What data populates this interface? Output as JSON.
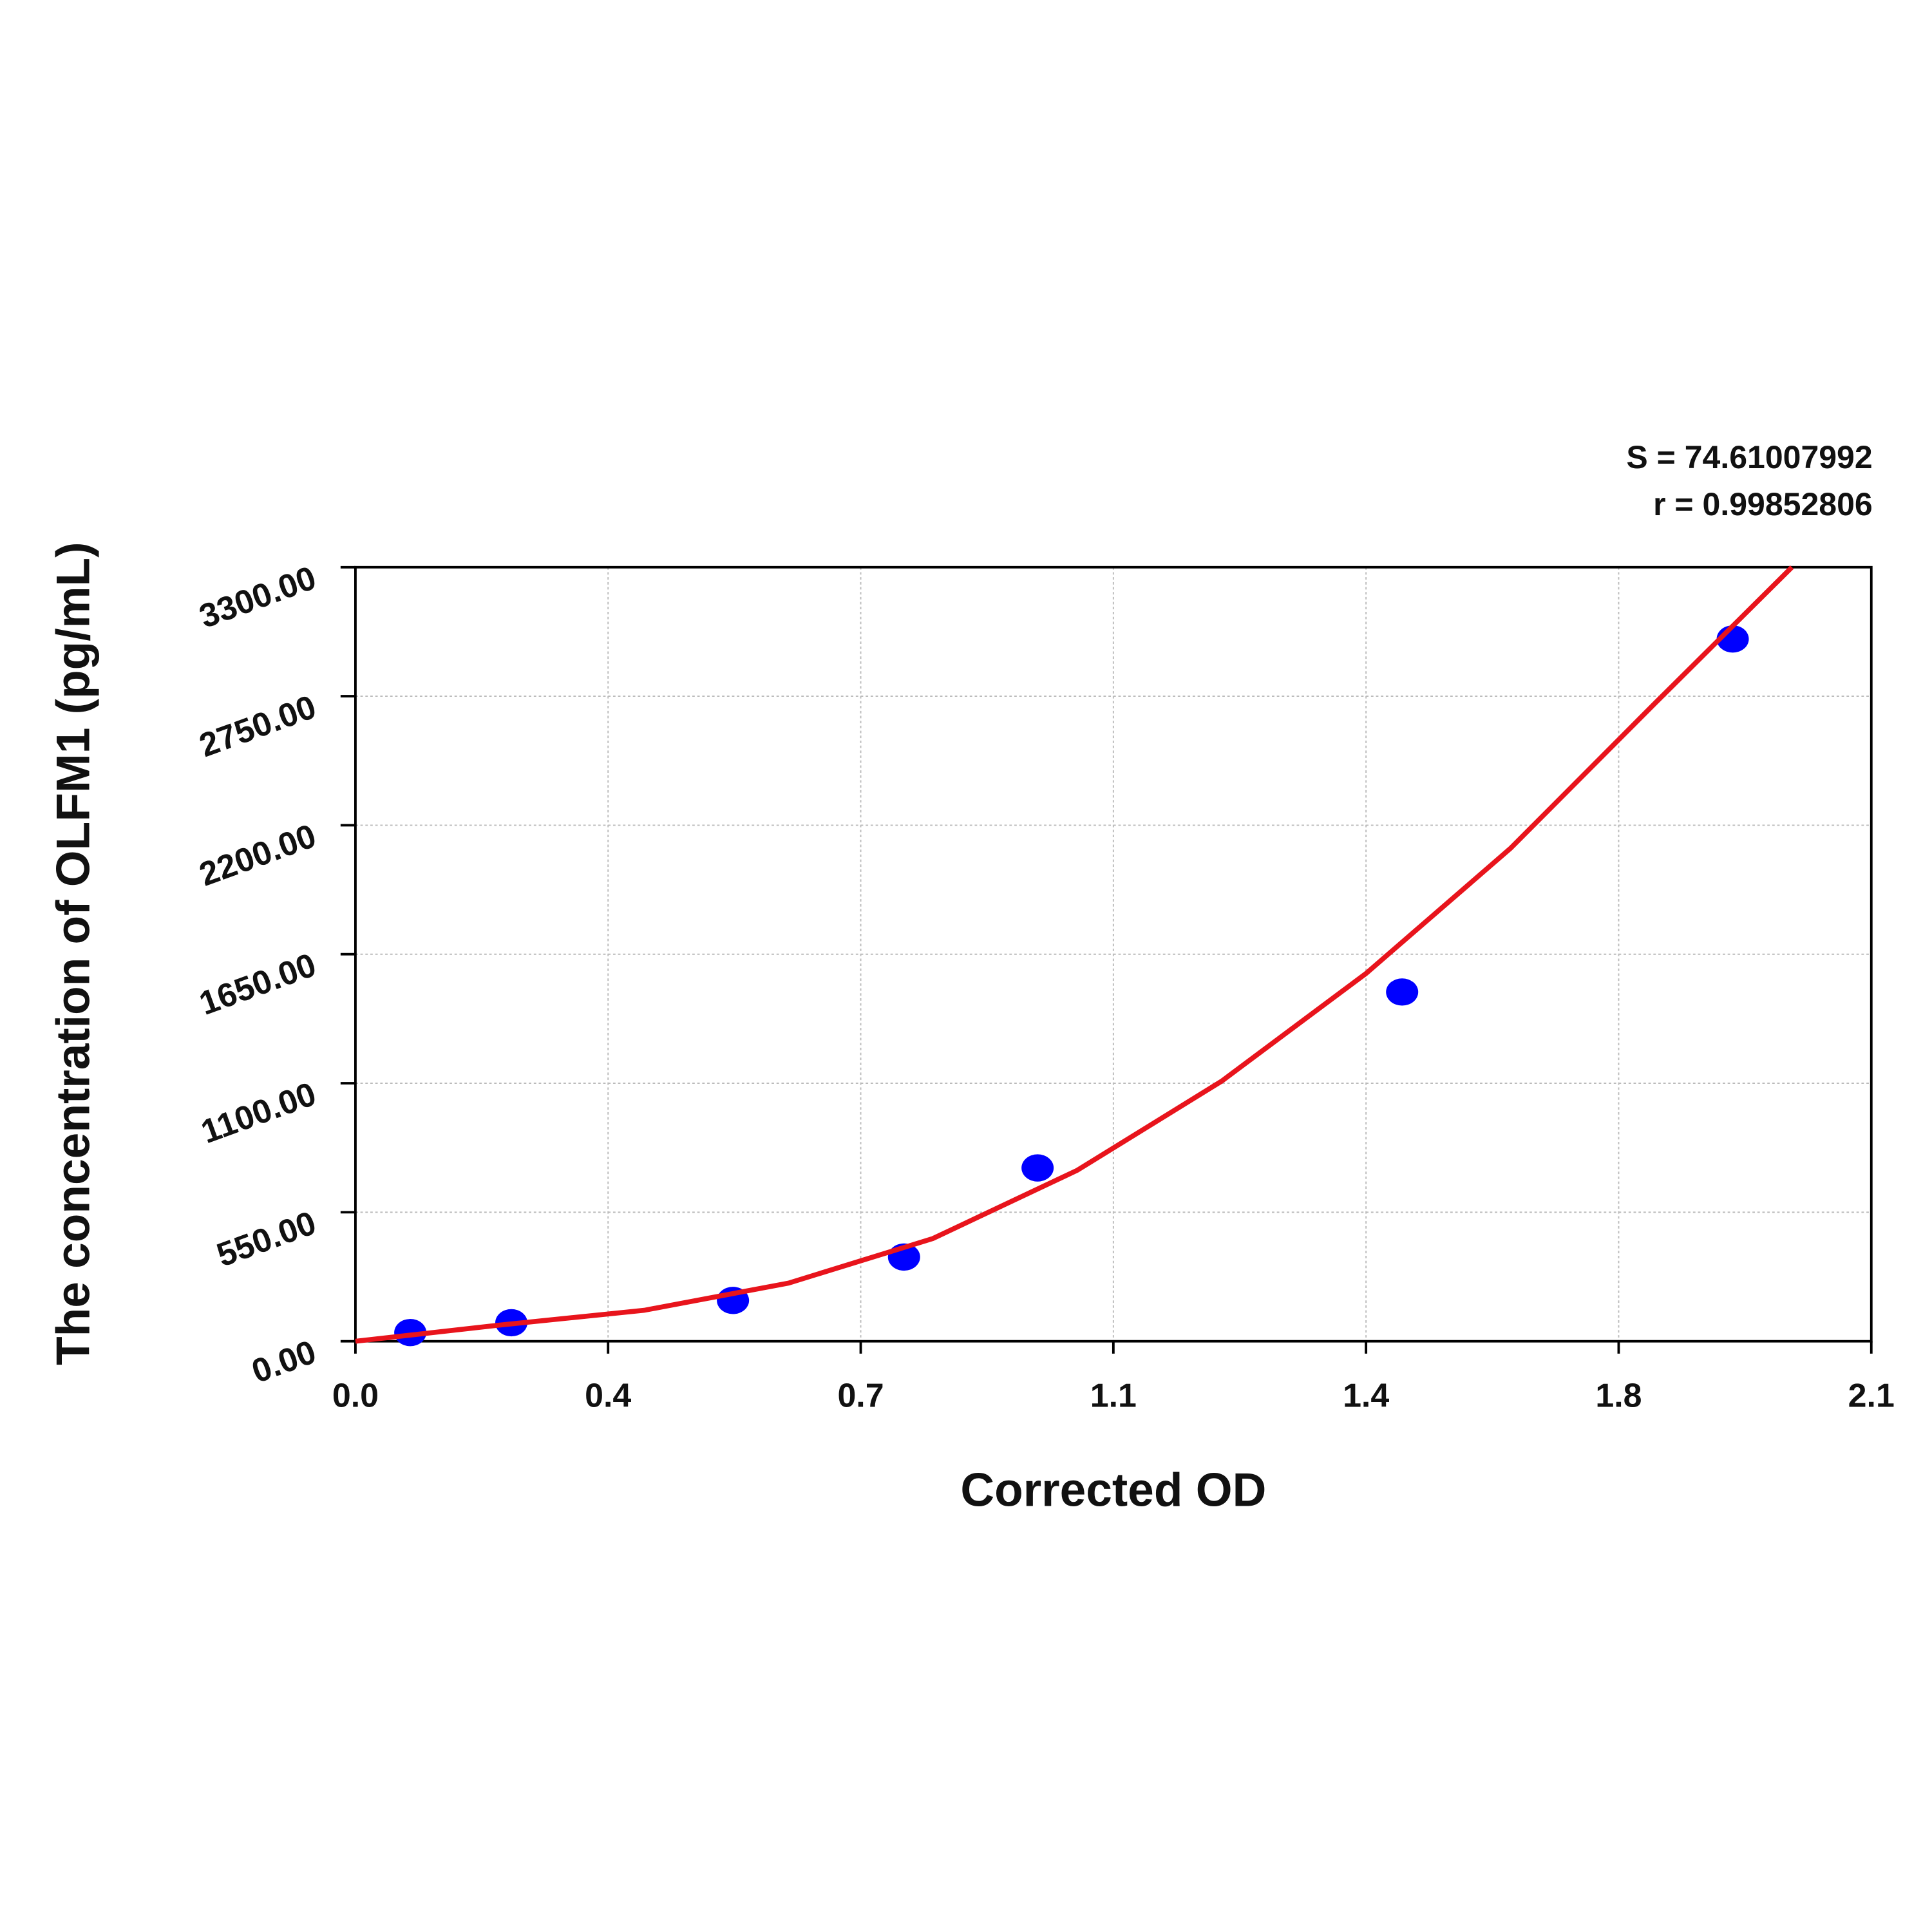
{
  "chart_data": {
    "type": "scatter",
    "x_label": "Corrected OD",
    "y_label": "The concentration of OLFM1 (pg/mL)",
    "annotations": [
      "S = 74.61007992",
      "r = 0.99852806"
    ],
    "xlim": [
      0,
      2.1
    ],
    "ylim": [
      0,
      3300
    ],
    "xticks": [
      {
        "value": 0,
        "label": "0.0"
      },
      {
        "value": 0.35,
        "label": "0.4"
      },
      {
        "value": 0.7,
        "label": "0.7"
      },
      {
        "value": 1.05,
        "label": "1.1"
      },
      {
        "value": 1.4,
        "label": "1.4"
      },
      {
        "value": 1.75,
        "label": "1.8"
      },
      {
        "value": 2.1,
        "label": "2.1"
      }
    ],
    "yticks": [
      {
        "value": 0,
        "label": "0.00"
      },
      {
        "value": 550,
        "label": "550.00"
      },
      {
        "value": 1100,
        "label": "1100.00"
      },
      {
        "value": 1650,
        "label": "1650.00"
      },
      {
        "value": 2200,
        "label": "2200.00"
      },
      {
        "value": 2750,
        "label": "2750.00"
      },
      {
        "value": 3300,
        "label": "3300.00"
      }
    ],
    "grid": true,
    "series": [
      {
        "color": "#0000ff",
        "x": [
          0.076,
          0.216,
          0.523,
          0.76,
          0.945,
          1.45,
          1.908
        ],
        "values": [
          37,
          79,
          174,
          359,
          739,
          1489,
          2994
        ]
      },
      {
        "color": "#e8141c",
        "x": [
          0.0,
          0.2,
          0.4,
          0.6,
          0.8,
          1.0,
          1.2,
          1.4,
          1.6,
          1.8,
          1.99
        ],
        "values": [
          0,
          69,
          132,
          248,
          438,
          729,
          1109,
          1568,
          2101,
          2719,
          3300
        ]
      }
    ]
  }
}
